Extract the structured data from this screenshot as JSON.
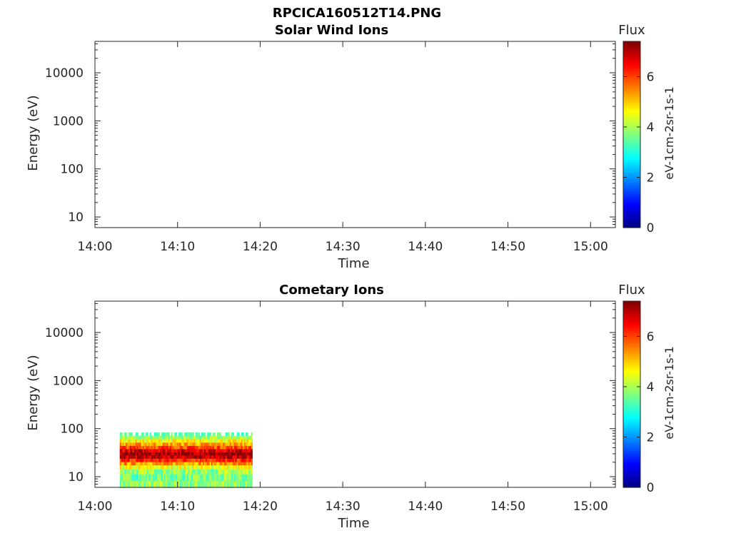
{
  "figure_title": "RPCICA160512T14.PNG",
  "colors": {
    "colormap": [
      "#00007f",
      "#0000ff",
      "#007fff",
      "#00ffff",
      "#7fff7f",
      "#ffff00",
      "#ff7f00",
      "#ff0000",
      "#7f0000"
    ],
    "axes": "#262626",
    "background": "#ffffff"
  },
  "chart_data": [
    {
      "type": "heatmap",
      "title": "Solar Wind Ions",
      "xlabel": "Time",
      "ylabel": "Energy (eV)",
      "x_ticks": [
        "14:00",
        "14:10",
        "14:20",
        "14:30",
        "14:40",
        "14:50",
        "15:00"
      ],
      "y_ticks": [
        "10",
        "100",
        "1000",
        "10000"
      ],
      "y_scale": "log",
      "xlim": [
        "14:00",
        "15:03"
      ],
      "ylim": [
        6,
        45000
      ],
      "colorbar": {
        "title": "Flux",
        "label": "eV-1cm-2sr-1s-1",
        "ticks": [
          "0",
          "2",
          "4",
          "6"
        ],
        "range": [
          0,
          7.4
        ]
      },
      "data": []
    },
    {
      "type": "heatmap",
      "title": "Cometary Ions",
      "xlabel": "Time",
      "ylabel": "Energy (eV)",
      "x_ticks": [
        "14:00",
        "14:10",
        "14:20",
        "14:30",
        "14:40",
        "14:50",
        "15:00"
      ],
      "y_ticks": [
        "10",
        "100",
        "1000",
        "10000"
      ],
      "y_scale": "log",
      "xlim": [
        "14:00",
        "15:03"
      ],
      "ylim": [
        6,
        45000
      ],
      "colorbar": {
        "title": "Flux",
        "label": "eV-1cm-2sr-1s-1",
        "ticks": [
          "0",
          "2",
          "4",
          "6"
        ],
        "range": [
          0,
          7.4
        ]
      },
      "data": {
        "time_range": [
          "14:03",
          "14:19"
        ],
        "energy_profile": [
          {
            "energy_ev": 7,
            "flux": 3.8
          },
          {
            "energy_ev": 10,
            "flux": 3.6
          },
          {
            "energy_ev": 13,
            "flux": 3.9
          },
          {
            "energy_ev": 16,
            "flux": 4.5
          },
          {
            "energy_ev": 19,
            "flux": 5.4
          },
          {
            "energy_ev": 22,
            "flux": 6.2
          },
          {
            "energy_ev": 26,
            "flux": 6.9
          },
          {
            "energy_ev": 30,
            "flux": 7.2
          },
          {
            "energy_ev": 35,
            "flux": 6.8
          },
          {
            "energy_ev": 41,
            "flux": 6.0
          },
          {
            "energy_ev": 48,
            "flux": 5.3
          },
          {
            "energy_ev": 56,
            "flux": 4.6
          },
          {
            "energy_ev": 66,
            "flux": 3.9
          },
          {
            "energy_ev": 77,
            "flux": 3.2
          }
        ]
      }
    }
  ]
}
